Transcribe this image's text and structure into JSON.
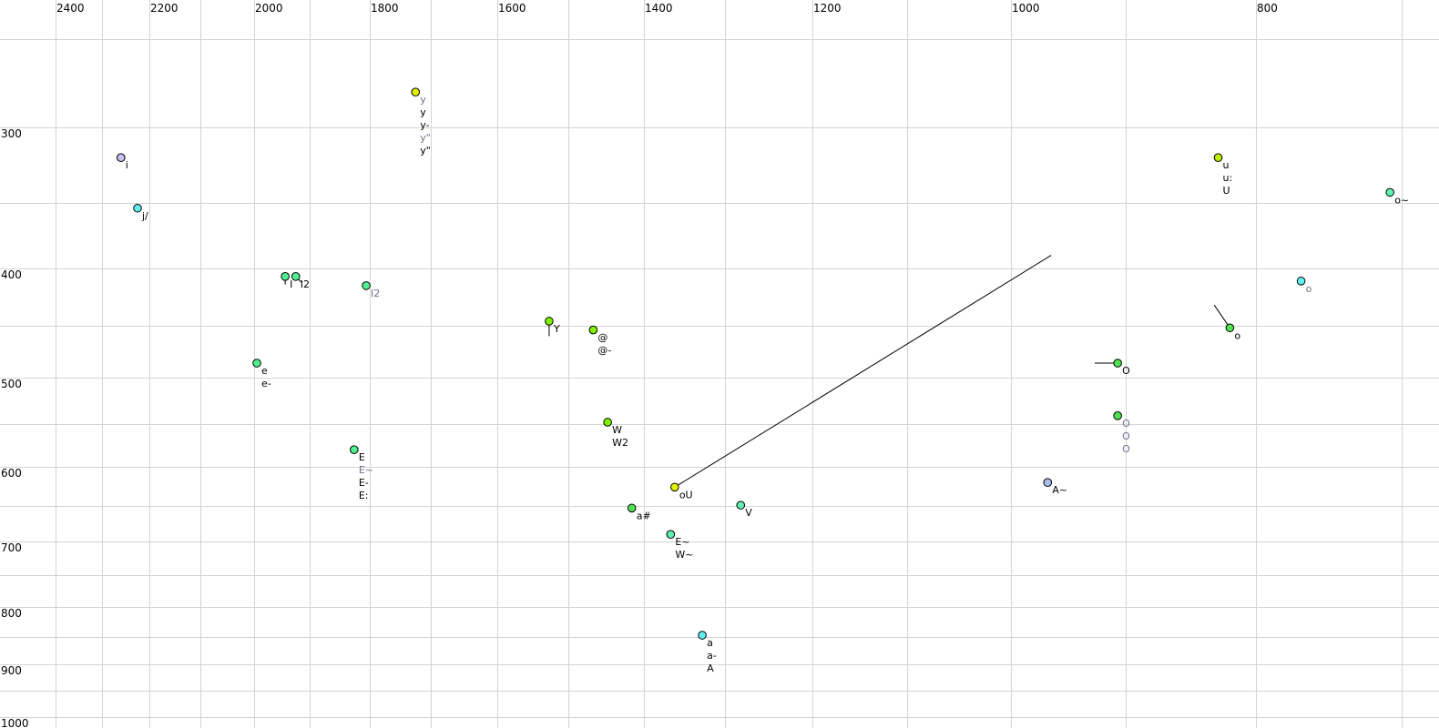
{
  "chart_data": {
    "type": "scatter",
    "title": "",
    "xlabel": "",
    "ylabel": "",
    "x_axis": {
      "reversed": true,
      "scale": "nonlinear",
      "position": "top",
      "gridlines": [
        2400,
        2300,
        2200,
        2100,
        2000,
        1900,
        1800,
        1700,
        1600,
        1500,
        1400,
        1300,
        1200,
        1100,
        1000,
        900,
        800,
        700
      ],
      "tick_labels": [
        "2400",
        "2200",
        "2000",
        "1800",
        "1600",
        "1400",
        "1200",
        "1000",
        "800"
      ]
    },
    "y_axis": {
      "reversed": false,
      "scale": "nonlinear",
      "position": "left",
      "gridlines": [
        250,
        300,
        350,
        400,
        450,
        500,
        550,
        600,
        650,
        700,
        750,
        800,
        850,
        900,
        950,
        1000
      ],
      "tick_labels": [
        "300",
        "400",
        "500",
        "600",
        "700",
        "800",
        "900",
        "1000"
      ]
    },
    "grid": true,
    "colors": {
      "grid": "#d4d4d4",
      "label_black": "#000000",
      "label_gray": "#707090"
    },
    "points": [
      {
        "x": 2260,
        "y": 320,
        "color": "#c8c0f0",
        "labels": [
          {
            "t": "i",
            "g": false
          }
        ]
      },
      {
        "x": 2225,
        "y": 354,
        "color": "#60f0f0",
        "labels": [
          {
            "t": "j/",
            "g": false
          }
        ]
      },
      {
        "x": 1944,
        "y": 407,
        "color": "#50f090",
        "labels": [
          {
            "t": "I",
            "g": false
          }
        ]
      },
      {
        "x": 1925,
        "y": 407,
        "color": "#50f090",
        "labels": [
          {
            "t": "I2",
            "g": false
          }
        ]
      },
      {
        "x": 1806,
        "y": 415,
        "color": "#50f090",
        "labels": [
          {
            "t": "I2",
            "g": true
          }
        ]
      },
      {
        "x": 1995,
        "y": 486,
        "color": "#50f090",
        "labels": [
          {
            "t": "e",
            "g": false
          },
          {
            "t": "e-",
            "g": false
          }
        ]
      },
      {
        "x": 1826,
        "y": 580,
        "color": "#50f090",
        "labels": [
          {
            "t": "E",
            "g": false
          },
          {
            "t": "E~",
            "g": true
          },
          {
            "t": "E-",
            "g": false
          },
          {
            "t": "E:",
            "g": false
          }
        ]
      },
      {
        "x": 1725,
        "y": 280,
        "color": "#e0f000",
        "labels": [
          {
            "t": "y",
            "g": true
          },
          {
            "t": "y",
            "g": false
          },
          {
            "t": "y-",
            "g": false
          },
          {
            "t": "y\"",
            "g": true
          },
          {
            "t": "y\"",
            "g": false
          }
        ]
      },
      {
        "x": 1527,
        "y": 446,
        "color": "#80f000",
        "labels": [
          {
            "t": "Y",
            "g": false
          }
        ]
      },
      {
        "x": 1467,
        "y": 454,
        "color": "#80f000",
        "labels": [
          {
            "t": "@",
            "g": false
          },
          {
            "t": "@-",
            "g": false
          }
        ]
      },
      {
        "x": 1448,
        "y": 548,
        "color": "#80f000",
        "labels": [
          {
            "t": "W",
            "g": false
          },
          {
            "t": "W2",
            "g": false
          }
        ]
      },
      {
        "x": 1362,
        "y": 626,
        "color": "#e0f000",
        "labels": [
          {
            "t": "oU",
            "g": false
          }
        ]
      },
      {
        "x": 1416,
        "y": 653,
        "color": "#50e050",
        "labels": [
          {
            "t": "a#",
            "g": false
          }
        ]
      },
      {
        "x": 1282,
        "y": 649,
        "color": "#60f0b0",
        "labels": [
          {
            "t": "V",
            "g": false
          }
        ]
      },
      {
        "x": 1367,
        "y": 690,
        "color": "#60f0b0",
        "labels": [
          {
            "t": "E~",
            "g": false
          },
          {
            "t": "W~",
            "g": false
          }
        ]
      },
      {
        "x": 1328,
        "y": 847,
        "color": "#60f0f0",
        "labels": [
          {
            "t": "a",
            "g": false
          },
          {
            "t": "a-",
            "g": false
          },
          {
            "t": "A",
            "g": false
          }
        ]
      },
      {
        "x": 968,
        "y": 620,
        "color": "#a8c0f0",
        "labels": [
          {
            "t": "A~",
            "g": false
          }
        ]
      },
      {
        "x": 907,
        "y": 486,
        "color": "#50e050",
        "labels": [
          {
            "t": "O",
            "g": false
          }
        ]
      },
      {
        "x": 907,
        "y": 541,
        "color": "#50e050",
        "labels": [
          {
            "t": "O",
            "g": true
          },
          {
            "t": "O",
            "g": true
          },
          {
            "t": "O",
            "g": true
          }
        ]
      },
      {
        "x": 829,
        "y": 320,
        "color": "#c0f000",
        "labels": [
          {
            "t": "u",
            "g": false
          },
          {
            "t": "u:",
            "g": false
          },
          {
            "t": "U",
            "g": false
          }
        ]
      },
      {
        "x": 708,
        "y": 343,
        "color": "#60f0b0",
        "labels": [
          {
            "t": "o~",
            "g": false
          }
        ]
      },
      {
        "x": 769,
        "y": 411,
        "color": "#60f0f0",
        "labels": [
          {
            "t": "o",
            "g": true
          }
        ]
      },
      {
        "x": 820,
        "y": 452,
        "color": "#50e050",
        "labels": [
          {
            "t": "o",
            "g": false
          }
        ]
      }
    ],
    "segments": [
      {
        "from": [
          1362,
          626
        ],
        "to": [
          965,
          390
        ]
      },
      {
        "from": [
          927,
          486
        ],
        "to": [
          907,
          486
        ]
      },
      {
        "from": [
          832,
          432
        ],
        "to": [
          820,
          452
        ]
      },
      {
        "from": [
          1944,
          407
        ],
        "to": [
          1944,
          414
        ]
      },
      {
        "from": [
          1925,
          407
        ],
        "to": [
          1915,
          412
        ]
      },
      {
        "from": [
          1527,
          446
        ],
        "to": [
          1527,
          460
        ]
      }
    ]
  }
}
